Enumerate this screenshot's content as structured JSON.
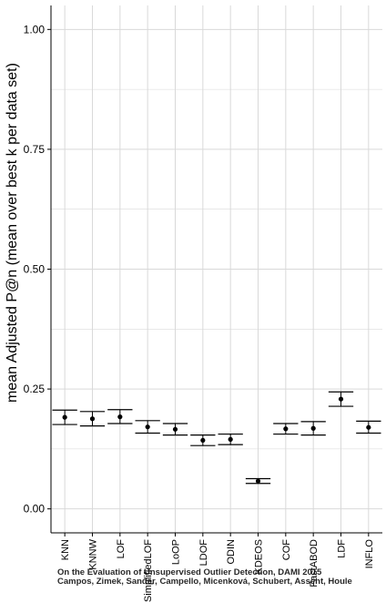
{
  "chart_data": {
    "type": "scatter",
    "style": "point-with-errorbars",
    "ylabel": "mean Adjusted P@n (mean over best k per data set)",
    "xlabel": "",
    "ylim": [
      -0.05,
      1.05
    ],
    "yticks": [
      0.0,
      0.25,
      0.5,
      0.75,
      1.0
    ],
    "ytick_labels": [
      "0.00",
      "0.25",
      "0.50",
      "0.75",
      "1.00"
    ],
    "grid": true,
    "categories": [
      "KNN",
      "KNNW",
      "LOF",
      "SimplifiedLOF",
      "LoOP",
      "LDOF",
      "ODIN",
      "KDEOS",
      "COF",
      "FastABOD",
      "LDF",
      "INFLO"
    ],
    "series": [
      {
        "values": [
          0.191,
          0.188,
          0.192,
          0.171,
          0.166,
          0.143,
          0.145,
          0.058,
          0.167,
          0.168,
          0.229,
          0.17
        ],
        "lower": [
          0.176,
          0.173,
          0.178,
          0.158,
          0.154,
          0.132,
          0.134,
          0.053,
          0.156,
          0.154,
          0.214,
          0.158
        ],
        "upper": [
          0.206,
          0.203,
          0.207,
          0.184,
          0.178,
          0.154,
          0.156,
          0.063,
          0.178,
          0.182,
          0.244,
          0.183
        ]
      }
    ],
    "colors": {
      "points": "#000000",
      "grid": "#d9d9d9",
      "axis": "#000000"
    },
    "watermark": {
      "line1": "On the Evaluation of Unsupervised Outlier Detection, DAMI 2015",
      "line2": "Campos, Zimek, Sander, Campello, Micenková, Schubert, Assent, Houle"
    }
  }
}
